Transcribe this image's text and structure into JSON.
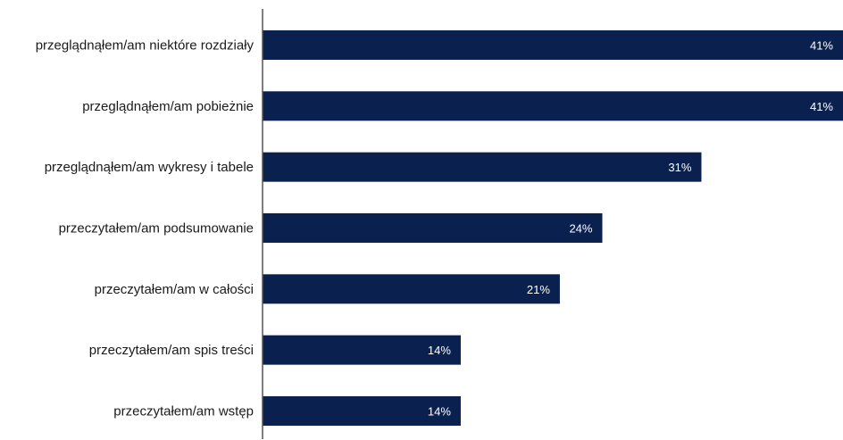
{
  "chart_data": {
    "type": "bar",
    "orientation": "horizontal",
    "categories": [
      "przeglądnąłem/am niektóre rozdziały",
      "przeglądnąłem/am pobieżnie",
      "przeglądnąłem/am wykresy i tabele",
      "przeczytałem/am podsumowanie",
      "przeczytałem/am w całości",
      "przeczytałem/am spis treści",
      "przeczytałem/am wstęp"
    ],
    "values": [
      41,
      41,
      31,
      24,
      21,
      14,
      14
    ],
    "value_labels": [
      "41%",
      "41%",
      "31%",
      "24%",
      "21%",
      "14%",
      "14%"
    ],
    "unit": "%",
    "title": "",
    "xlabel": "",
    "ylabel": "",
    "xlim": [
      0,
      41
    ],
    "grid": false,
    "legend": "none",
    "bar_color": "#0a2150",
    "axis_color": "#555555"
  }
}
